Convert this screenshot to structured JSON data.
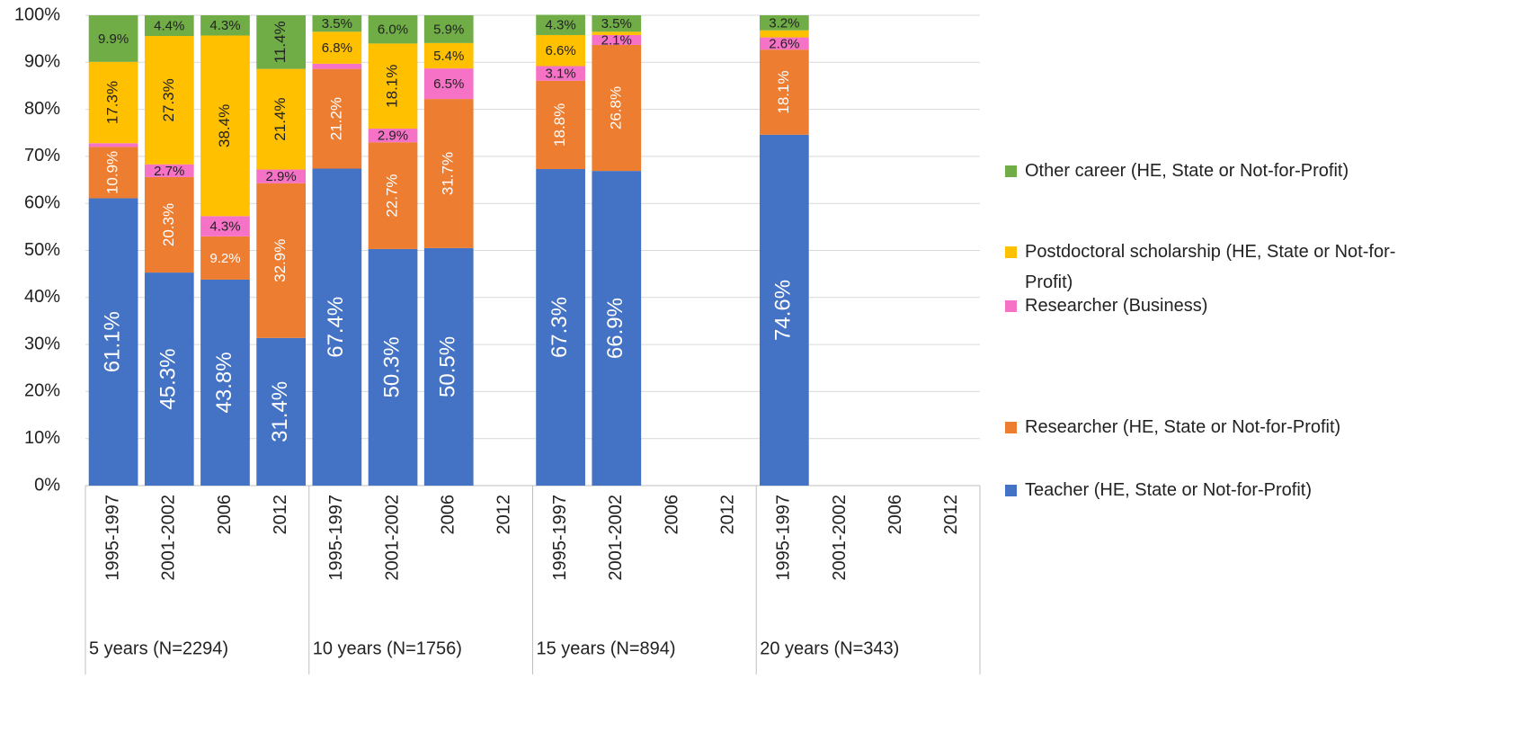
{
  "chart_data": {
    "type": "stacked_bar",
    "groups": [
      "5 years (N=2294)",
      "10 years (N=1756)",
      "15 years (N=894)",
      "20 years (N=343)"
    ],
    "categories": [
      "1995-1997",
      "2001-2002",
      "2006",
      "2012",
      "1995-1997",
      "2001-2002",
      "2006",
      "2012",
      "1995-1997",
      "2001-2002",
      "2006",
      "2012",
      "1995-1997",
      "2001-2002",
      "2006",
      "2012"
    ],
    "ylim": [
      0,
      100
    ],
    "yticks": [
      {
        "value": 0,
        "label": "0%"
      },
      {
        "value": 10,
        "label": "10%"
      },
      {
        "value": 20,
        "label": "20%"
      },
      {
        "value": 30,
        "label": "30%"
      },
      {
        "value": 40,
        "label": "40%"
      },
      {
        "value": 50,
        "label": "50%"
      },
      {
        "value": 60,
        "label": "60%"
      },
      {
        "value": 70,
        "label": "70%"
      },
      {
        "value": 80,
        "label": "80%"
      },
      {
        "value": 90,
        "label": "90%"
      },
      {
        "value": 100,
        "label": "100%"
      }
    ],
    "grid": true,
    "legend": "right",
    "series": [
      {
        "name": "Teacher (HE, State or Not-for-Profit)",
        "color": "#4472c4",
        "values": [
          61.1,
          45.3,
          43.8,
          31.4,
          67.4,
          50.3,
          50.5,
          null,
          67.3,
          66.9,
          null,
          null,
          74.6,
          null,
          null,
          null
        ],
        "value_labels": [
          "61.1%",
          "45.3%",
          "43.8%",
          "31.4%",
          "67.4%",
          "50.3%",
          "50.5%",
          null,
          "67.3%",
          "66.9%",
          null,
          null,
          "74.6%",
          null,
          null,
          null
        ]
      },
      {
        "name": "Researcher (HE, State or Not-for-Profit)",
        "color": "#ed7d31",
        "values": [
          10.9,
          20.3,
          9.2,
          32.9,
          21.2,
          22.7,
          31.7,
          null,
          18.8,
          26.8,
          null,
          null,
          18.1,
          null,
          null,
          null
        ],
        "value_labels": [
          "10.9%",
          "20.3%",
          "9.2%",
          "32.9%",
          "21.2%",
          "22.7%",
          "31.7%",
          null,
          "18.8%",
          "26.8%",
          null,
          null,
          "18.1%",
          null,
          null,
          null
        ]
      },
      {
        "name": "Researcher (Business)",
        "color": "#f572c6",
        "values": [
          0.8,
          2.7,
          4.3,
          2.9,
          1.1,
          2.9,
          6.5,
          null,
          3.1,
          2.1,
          null,
          null,
          2.6,
          null,
          null,
          null
        ],
        "value_labels": [
          null,
          "2.7%",
          "4.3%",
          "2.9%",
          null,
          "2.9%",
          "6.5%",
          null,
          "3.1%",
          "2.1%",
          null,
          null,
          "2.6%",
          null,
          null,
          null
        ]
      },
      {
        "name": "Postdoctoral scholarship (HE, State or Not-for-Profit)",
        "color": "#ffc000",
        "values": [
          17.3,
          27.3,
          38.4,
          21.4,
          6.8,
          18.1,
          5.4,
          null,
          6.6,
          0.7,
          null,
          null,
          1.5,
          null,
          null,
          null
        ],
        "value_labels": [
          "17.3%",
          "27.3%",
          "38.4%",
          "21.4%",
          "6.8%",
          "18.1%",
          "5.4%",
          null,
          "6.6%",
          null,
          null,
          null,
          null,
          null,
          null,
          null
        ]
      },
      {
        "name": "Other career (HE, State or Not-for-Profit)",
        "color": "#70ad47",
        "values": [
          9.9,
          4.4,
          4.3,
          11.4,
          3.5,
          6.0,
          5.9,
          null,
          4.3,
          3.5,
          null,
          null,
          3.2,
          null,
          null,
          null
        ],
        "value_labels": [
          "9.9%",
          "4.4%",
          "4.3%",
          "11.4%",
          "3.5%",
          "6.0%",
          "5.9%",
          null,
          "4.3%",
          "3.5%",
          null,
          null,
          "3.2%",
          null,
          null,
          null
        ]
      }
    ]
  }
}
